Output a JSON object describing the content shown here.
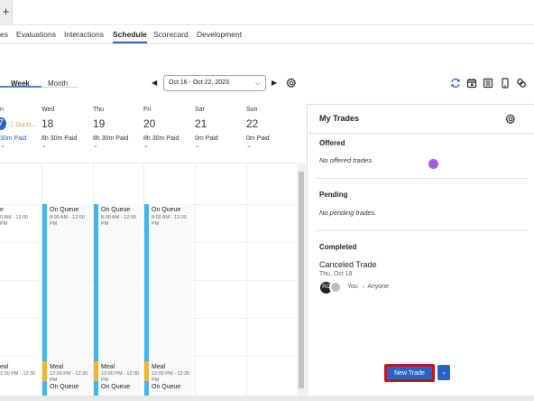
{
  "app": {
    "new_tab_glyph": "+"
  },
  "nav": {
    "tabs": [
      {
        "label": "es"
      },
      {
        "label": "Evaluations"
      },
      {
        "label": "Interactions"
      },
      {
        "label": "Schedule",
        "active": true
      },
      {
        "label": "Scorecard"
      },
      {
        "label": "Development"
      }
    ]
  },
  "toolbar": {
    "week_label": "Week",
    "month_label": "Month",
    "prev_glyph": "◀",
    "next_glyph": "▶",
    "date_range": "Oct 16 - Oct 22, 2023",
    "dropdown_glyph": "⌵"
  },
  "days": [
    {
      "name": "n",
      "num": "7",
      "paid": "30m Paid",
      "today": true,
      "badge": "Out O..."
    },
    {
      "name": "Wed",
      "num": "18",
      "paid": "8h 30m Paid"
    },
    {
      "name": "Thu",
      "num": "19",
      "paid": "8h 30m Paid"
    },
    {
      "name": "Fri",
      "num": "20",
      "paid": "8h 30m Paid"
    },
    {
      "name": "Sat",
      "num": "21",
      "paid": "0m Paid"
    },
    {
      "name": "Sun",
      "num": "22",
      "paid": "0m Paid"
    }
  ],
  "shifts": {
    "on_queue": "On Queue",
    "on_queue_time": "8:00 AM - 12:00 PM",
    "meal": "Meal",
    "meal_time": "12:00 PM - 12:30 PM",
    "on_queue_after": "On Queue",
    "partial_title": "e",
    "partial_time": "0 AM - 12:00",
    "partial_meal": "eal",
    "partial_meal_time": "2:00 PM - 12:30"
  },
  "panel": {
    "title": "My Trades",
    "offered_title": "Offered",
    "offered_empty": "No offered trades.",
    "pending_title": "Pending",
    "pending_empty": "No pending trades.",
    "completed_title": "Completed",
    "trade": {
      "title": "Canceled Trade",
      "date": "Thu, Oct 19",
      "avatar_initials": "RC",
      "people": "You → Anyone"
    },
    "new_trade_label": "New Trade",
    "dropdown_glyph": "⌄"
  },
  "colors": {
    "accent": "#2a64c2",
    "queue": "#3bb8ef",
    "meal": "#f5b52c",
    "highlight_border": "#c0181c",
    "cursor": "#a65ae6"
  }
}
